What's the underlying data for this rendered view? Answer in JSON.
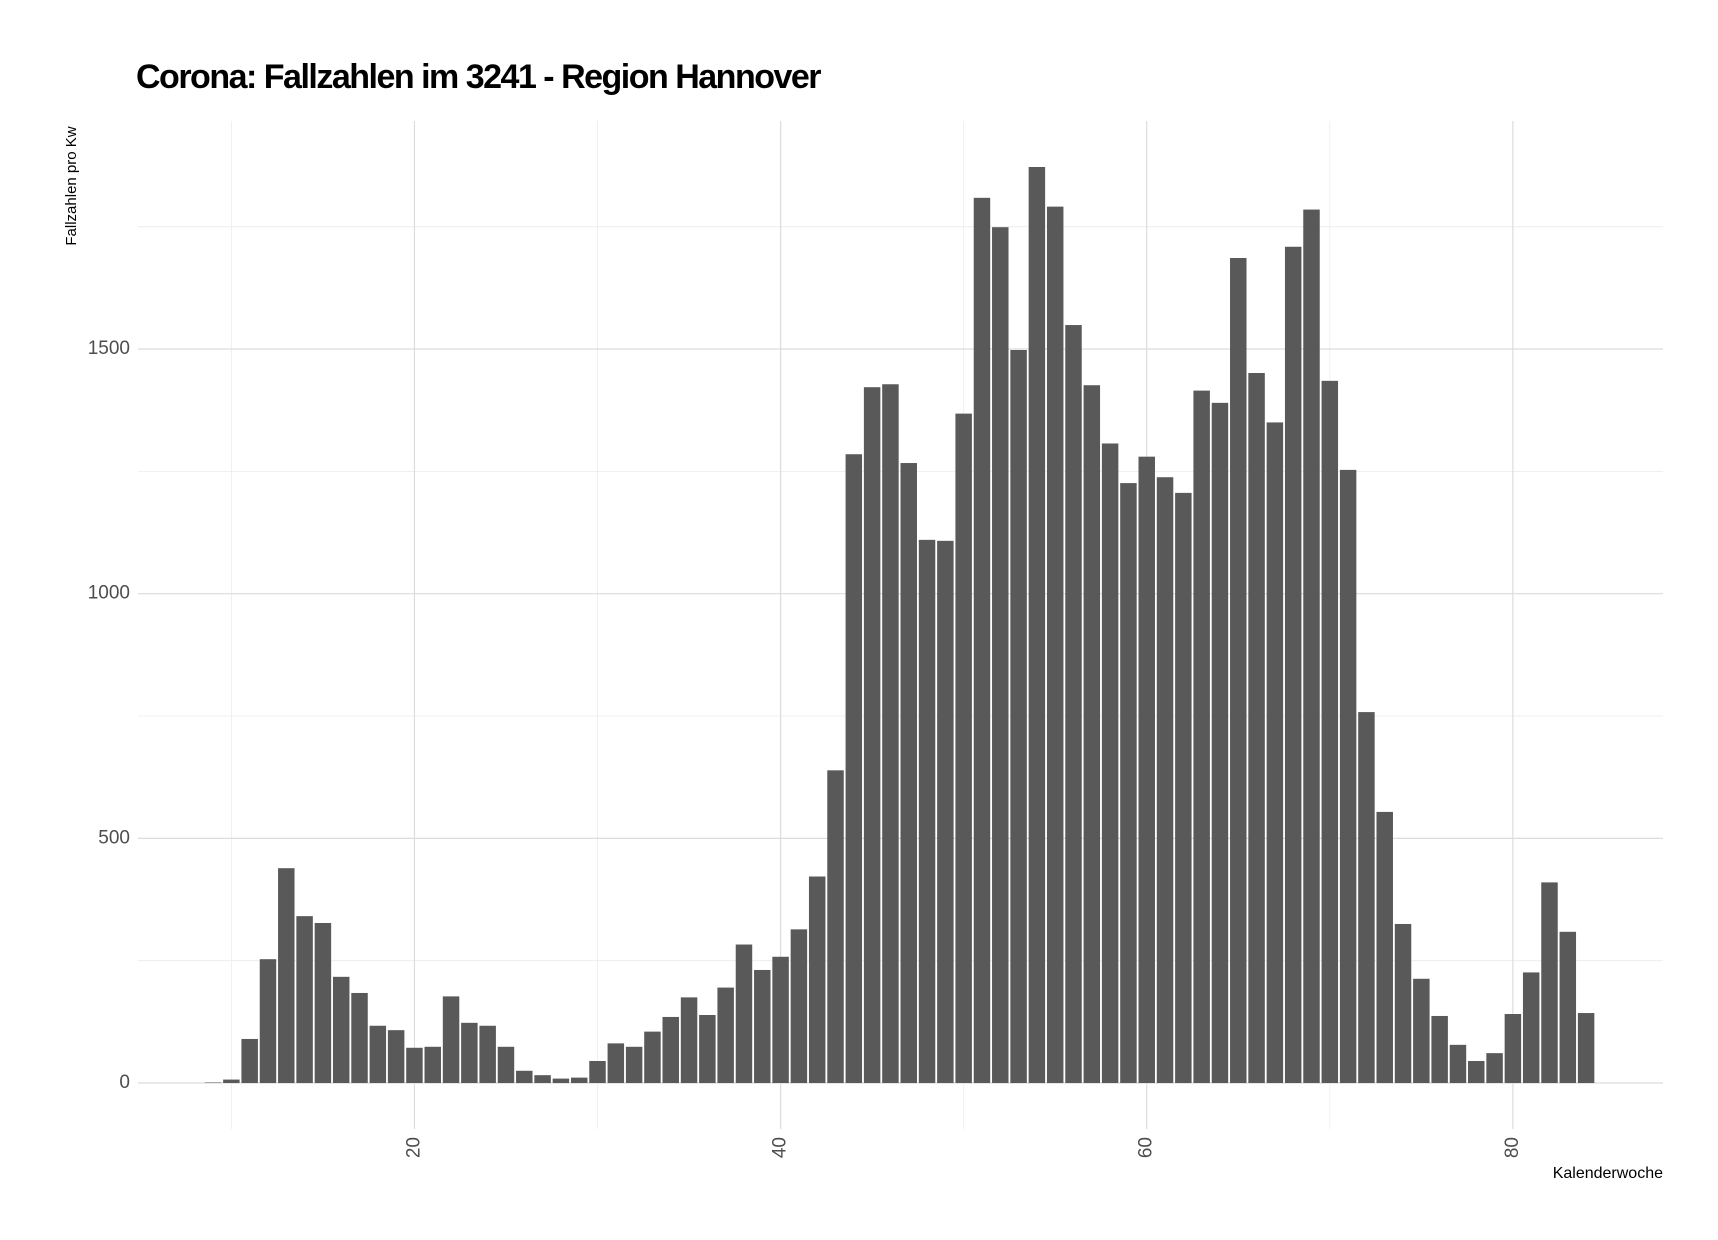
{
  "chart_data": {
    "type": "bar",
    "title": "Corona: Fallzahlen im 3241 - Region Hannover",
    "x_label": "Kalenderwoche",
    "y_label": "Fallzahlen pro Kw",
    "x": [
      9,
      10,
      11,
      12,
      13,
      14,
      15,
      16,
      17,
      18,
      19,
      20,
      21,
      22,
      23,
      24,
      25,
      26,
      27,
      28,
      29,
      30,
      31,
      32,
      33,
      34,
      35,
      36,
      37,
      38,
      39,
      40,
      41,
      42,
      43,
      44,
      45,
      46,
      47,
      48,
      49,
      50,
      51,
      52,
      53,
      54,
      55,
      56,
      57,
      58,
      59,
      60,
      61,
      62,
      63,
      64,
      65,
      66,
      67,
      68,
      69,
      70,
      71,
      72,
      73,
      74,
      75,
      76,
      77,
      78,
      79,
      80,
      81,
      82,
      83,
      84
    ],
    "values": [
      1,
      7,
      90,
      253,
      439,
      341,
      327,
      217,
      184,
      117,
      108,
      72,
      74,
      177,
      123,
      117,
      74,
      25,
      16,
      9,
      11,
      45,
      81,
      74,
      105,
      135,
      175,
      139,
      195,
      283,
      231,
      258,
      314,
      422,
      639,
      1285,
      1422,
      1428,
      1267,
      1110,
      1108,
      1368,
      1809,
      1749,
      1498,
      1872,
      1791,
      1549,
      1426,
      1307,
      1226,
      1280,
      1238,
      1206,
      1415,
      1390,
      1686,
      1451,
      1350,
      1709,
      1785,
      1435,
      1253,
      758,
      554,
      325,
      213,
      137,
      78,
      45,
      61,
      141,
      226,
      410,
      309,
      143
    ],
    "color": "#595959",
    "xlim": [
      4.9,
      88.2
    ],
    "xticks": [
      20,
      40,
      60,
      80
    ],
    "x_minor_ticks": [
      10,
      30,
      50,
      70
    ],
    "ylim": [
      -94,
      1966
    ],
    "yticks": [
      0,
      500,
      1000,
      1500
    ],
    "y_minor_ticks": [
      250,
      750,
      1250,
      1750
    ],
    "grid": true
  }
}
